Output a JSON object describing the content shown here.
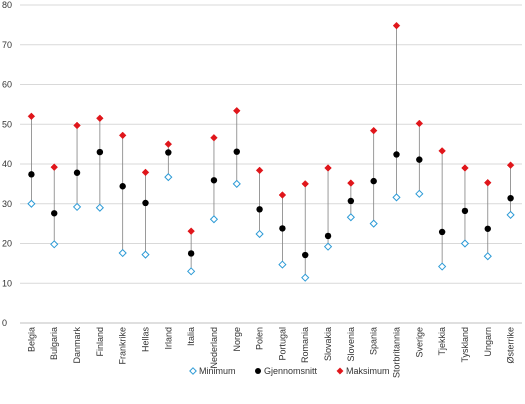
{
  "chart_data": {
    "type": "scatter",
    "categories": [
      "Belgia",
      "Bulgaria",
      "Danmark",
      "Finland",
      "Frankrike",
      "Hellas",
      "Irland",
      "Italia",
      "Nederland",
      "Norge",
      "Polen",
      "Portugal",
      "Romania",
      "Slovakia",
      "Slovenia",
      "Spania",
      "Storbritannia",
      "Sverige",
      "Tjekkia",
      "Tyskland",
      "Ungarn",
      "Østerrike"
    ],
    "series": [
      {
        "name": "Minimum",
        "marker": "diamond-open",
        "color": "#2e9bd6",
        "values": [
          30,
          19.8,
          29.2,
          29,
          17.6,
          17.2,
          36.7,
          13,
          26.1,
          35,
          22.4,
          14.7,
          11.4,
          19.2,
          26.6,
          25,
          31.6,
          32.5,
          14.2,
          20,
          16.8,
          27.2
        ]
      },
      {
        "name": "Gjennomsnitt",
        "marker": "circle",
        "color": "#000000",
        "values": [
          37.4,
          27.6,
          37.8,
          43,
          34.4,
          30.2,
          42.9,
          17.5,
          35.9,
          43.1,
          28.6,
          23.8,
          17.1,
          21.9,
          30.7,
          35.7,
          42.4,
          41.1,
          22.9,
          28.2,
          23.7,
          31.4
        ]
      },
      {
        "name": "Maksimum",
        "marker": "diamond",
        "color": "#e0161b",
        "values": [
          52,
          39.2,
          49.7,
          51.5,
          47.2,
          37.9,
          45,
          23.1,
          46.6,
          53.4,
          38.4,
          32.2,
          35,
          39,
          35.2,
          48.4,
          74.8,
          50.2,
          43.3,
          39,
          35.3,
          39.7
        ]
      }
    ],
    "ylim": [
      0,
      80
    ],
    "yticks": [
      0,
      10,
      20,
      30,
      40,
      50,
      60,
      70,
      80
    ],
    "grid": true,
    "legend": "bottom",
    "title": "",
    "xlabel": "",
    "ylabel": ""
  }
}
